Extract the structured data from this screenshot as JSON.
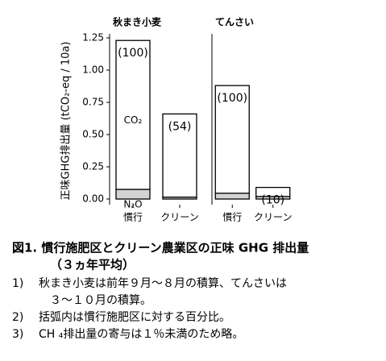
{
  "chart_data": [
    {
      "type": "bar",
      "stacked": true,
      "title": "秋まき小麦",
      "ylabel": "正味GHG排出量 (tCO₂-eq / 10a)",
      "categories": [
        "慣行",
        "クリーン"
      ],
      "series": [
        {
          "name": "N₂O",
          "color": "#d3d3d3",
          "values": [
            0.075,
            0.015
          ]
        },
        {
          "name": "CO₂",
          "color": "#ffffff",
          "values": [
            1.155,
            0.645
          ]
        }
      ],
      "labels": [
        "(100)",
        "(54)"
      ],
      "ylim": [
        0,
        1.25
      ],
      "yticks": [
        {
          "value": 0,
          "label": "0.00"
        },
        {
          "value": 0.25,
          "label": "0.25"
        },
        {
          "value": 0.5,
          "label": "0.50"
        },
        {
          "value": 0.75,
          "label": "0.75"
        },
        {
          "value": 1,
          "label": "1.00"
        },
        {
          "value": 1.25,
          "label": "1.25"
        }
      ]
    },
    {
      "type": "bar",
      "stacked": true,
      "title": "てんさい",
      "categories": [
        "慣行",
        "クリーン"
      ],
      "series": [
        {
          "color": "#d3d3d3",
          "values": [
            0.045,
            0.02
          ]
        },
        {
          "color": "#ffffff",
          "values": [
            0.835,
            0.07
          ]
        }
      ],
      "labels": [
        "(100)",
        "(10)"
      ],
      "ylim": [
        0,
        1.25
      ]
    }
  ],
  "caption": {
    "title": "図1.  慣行施肥区とクリーン農業区の正味 GHG 排出量",
    "subtitle": "（３ヵ年平均）",
    "notes": [
      {
        "number": "1)",
        "lines": [
          "秋まき小麦は前年９月～８月の積算、てんさいは",
          "３～１０月の積算。"
        ]
      },
      {
        "number": "2)",
        "lines": [
          "括弧内は慣行施肥区に対する百分比。"
        ]
      },
      {
        "number": "3)",
        "lines": [
          "CH ₄排出量の寄与は１％未満のため略。"
        ]
      }
    ]
  }
}
